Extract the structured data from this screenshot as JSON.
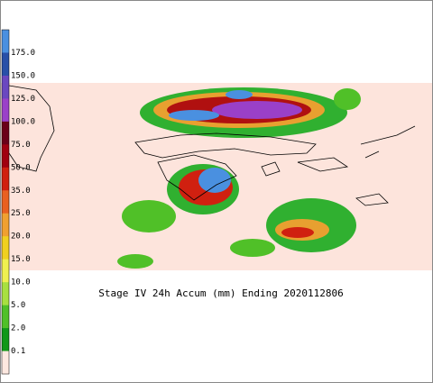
{
  "map": {
    "title": "Stage IV 24h Accum (mm) Ending 2020112806",
    "colorbar": {
      "labels": [
        "175.0",
        "150.0",
        "125.0",
        "100.0",
        "75.0",
        "50.0",
        "35.0",
        "25.0",
        "20.0",
        "15.0",
        "10.0",
        "5.0",
        "2.0",
        "0.1"
      ],
      "colors": [
        "#4a90e0",
        "#2850a8",
        "#6a48c0",
        "#9a40c8",
        "#6a0018",
        "#a00010",
        "#d02010",
        "#e86020",
        "#f0a030",
        "#f0d020",
        "#f0f050",
        "#a8e040",
        "#50c028",
        "#109818",
        "#fde8e0"
      ]
    }
  }
}
